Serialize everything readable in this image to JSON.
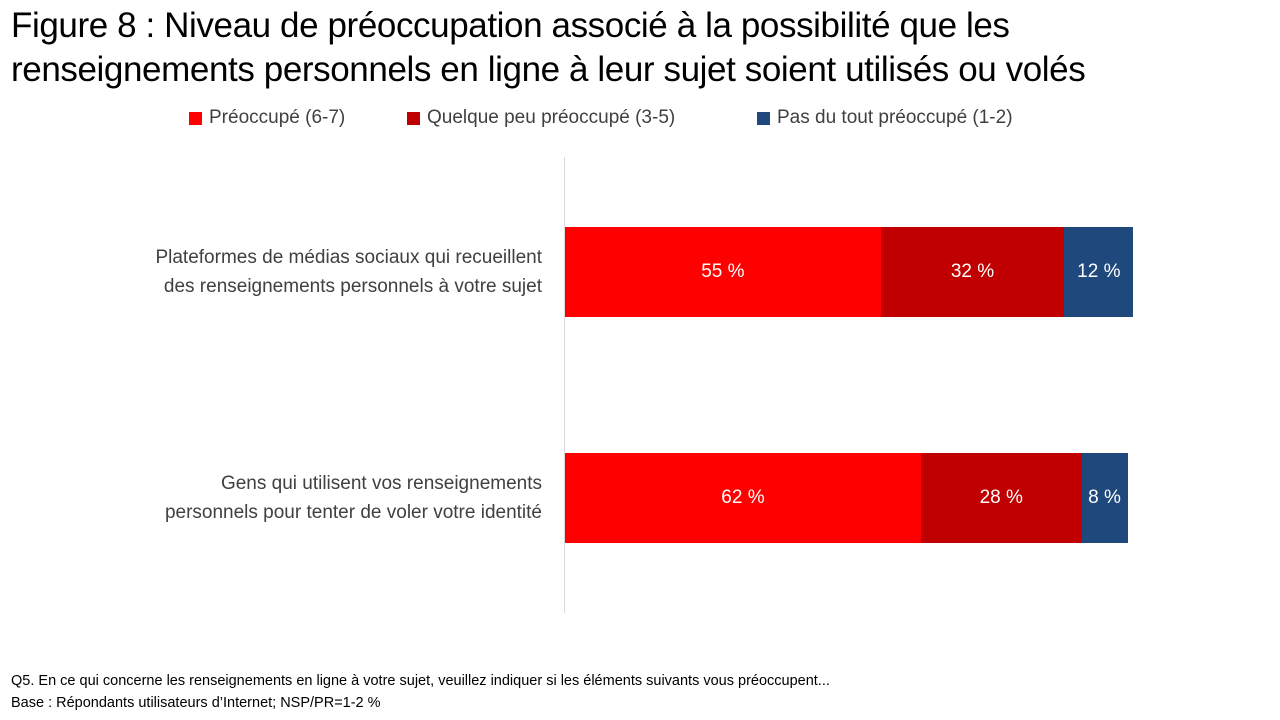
{
  "title_lines": [
    "Figure 8 : Niveau de préoccupation associé à la possibilité que les",
    "renseignements personnels en ligne à leur sujet soient utilisés ou volés"
  ],
  "footnotes": [
    "Q5. En ce qui concerne les renseignements en ligne à votre sujet, veuillez indiquer si les éléments suivants vous préoccupent...",
    "Base : Répondants utilisateurs d’Internet; NSP/PR=1-2 %"
  ],
  "chart_data": {
    "type": "bar",
    "orientation": "horizontal",
    "stacked": true,
    "title": "Figure 8 : Niveau de préoccupation associé à la possibilité que les renseignements personnels en ligne à leur sujet soient utilisés ou volés",
    "legend_position": "top",
    "categories": [
      [
        "Plateformes de médias sociaux qui recueillent",
        "des renseignements personnels à votre sujet"
      ],
      [
        "Gens qui utilisent vos renseignements",
        "personnels pour tenter de voler votre identité"
      ]
    ],
    "series": [
      {
        "name": "Préoccupé (6-7)",
        "color": "#ff0000",
        "values": [
          55,
          62
        ],
        "labels": [
          "55 %",
          "62 %"
        ]
      },
      {
        "name": "Quelque peu préoccupé (3-5)",
        "color": "#c00000",
        "values": [
          32,
          28
        ],
        "labels": [
          "32 %",
          "28 %"
        ]
      },
      {
        "name": "Pas du tout préoccupé (1-2)",
        "color": "#1f497d",
        "values": [
          12,
          8
        ],
        "labels": [
          "12 %",
          "8 %"
        ]
      }
    ],
    "xlim": [
      0,
      100
    ],
    "grid": false
  }
}
